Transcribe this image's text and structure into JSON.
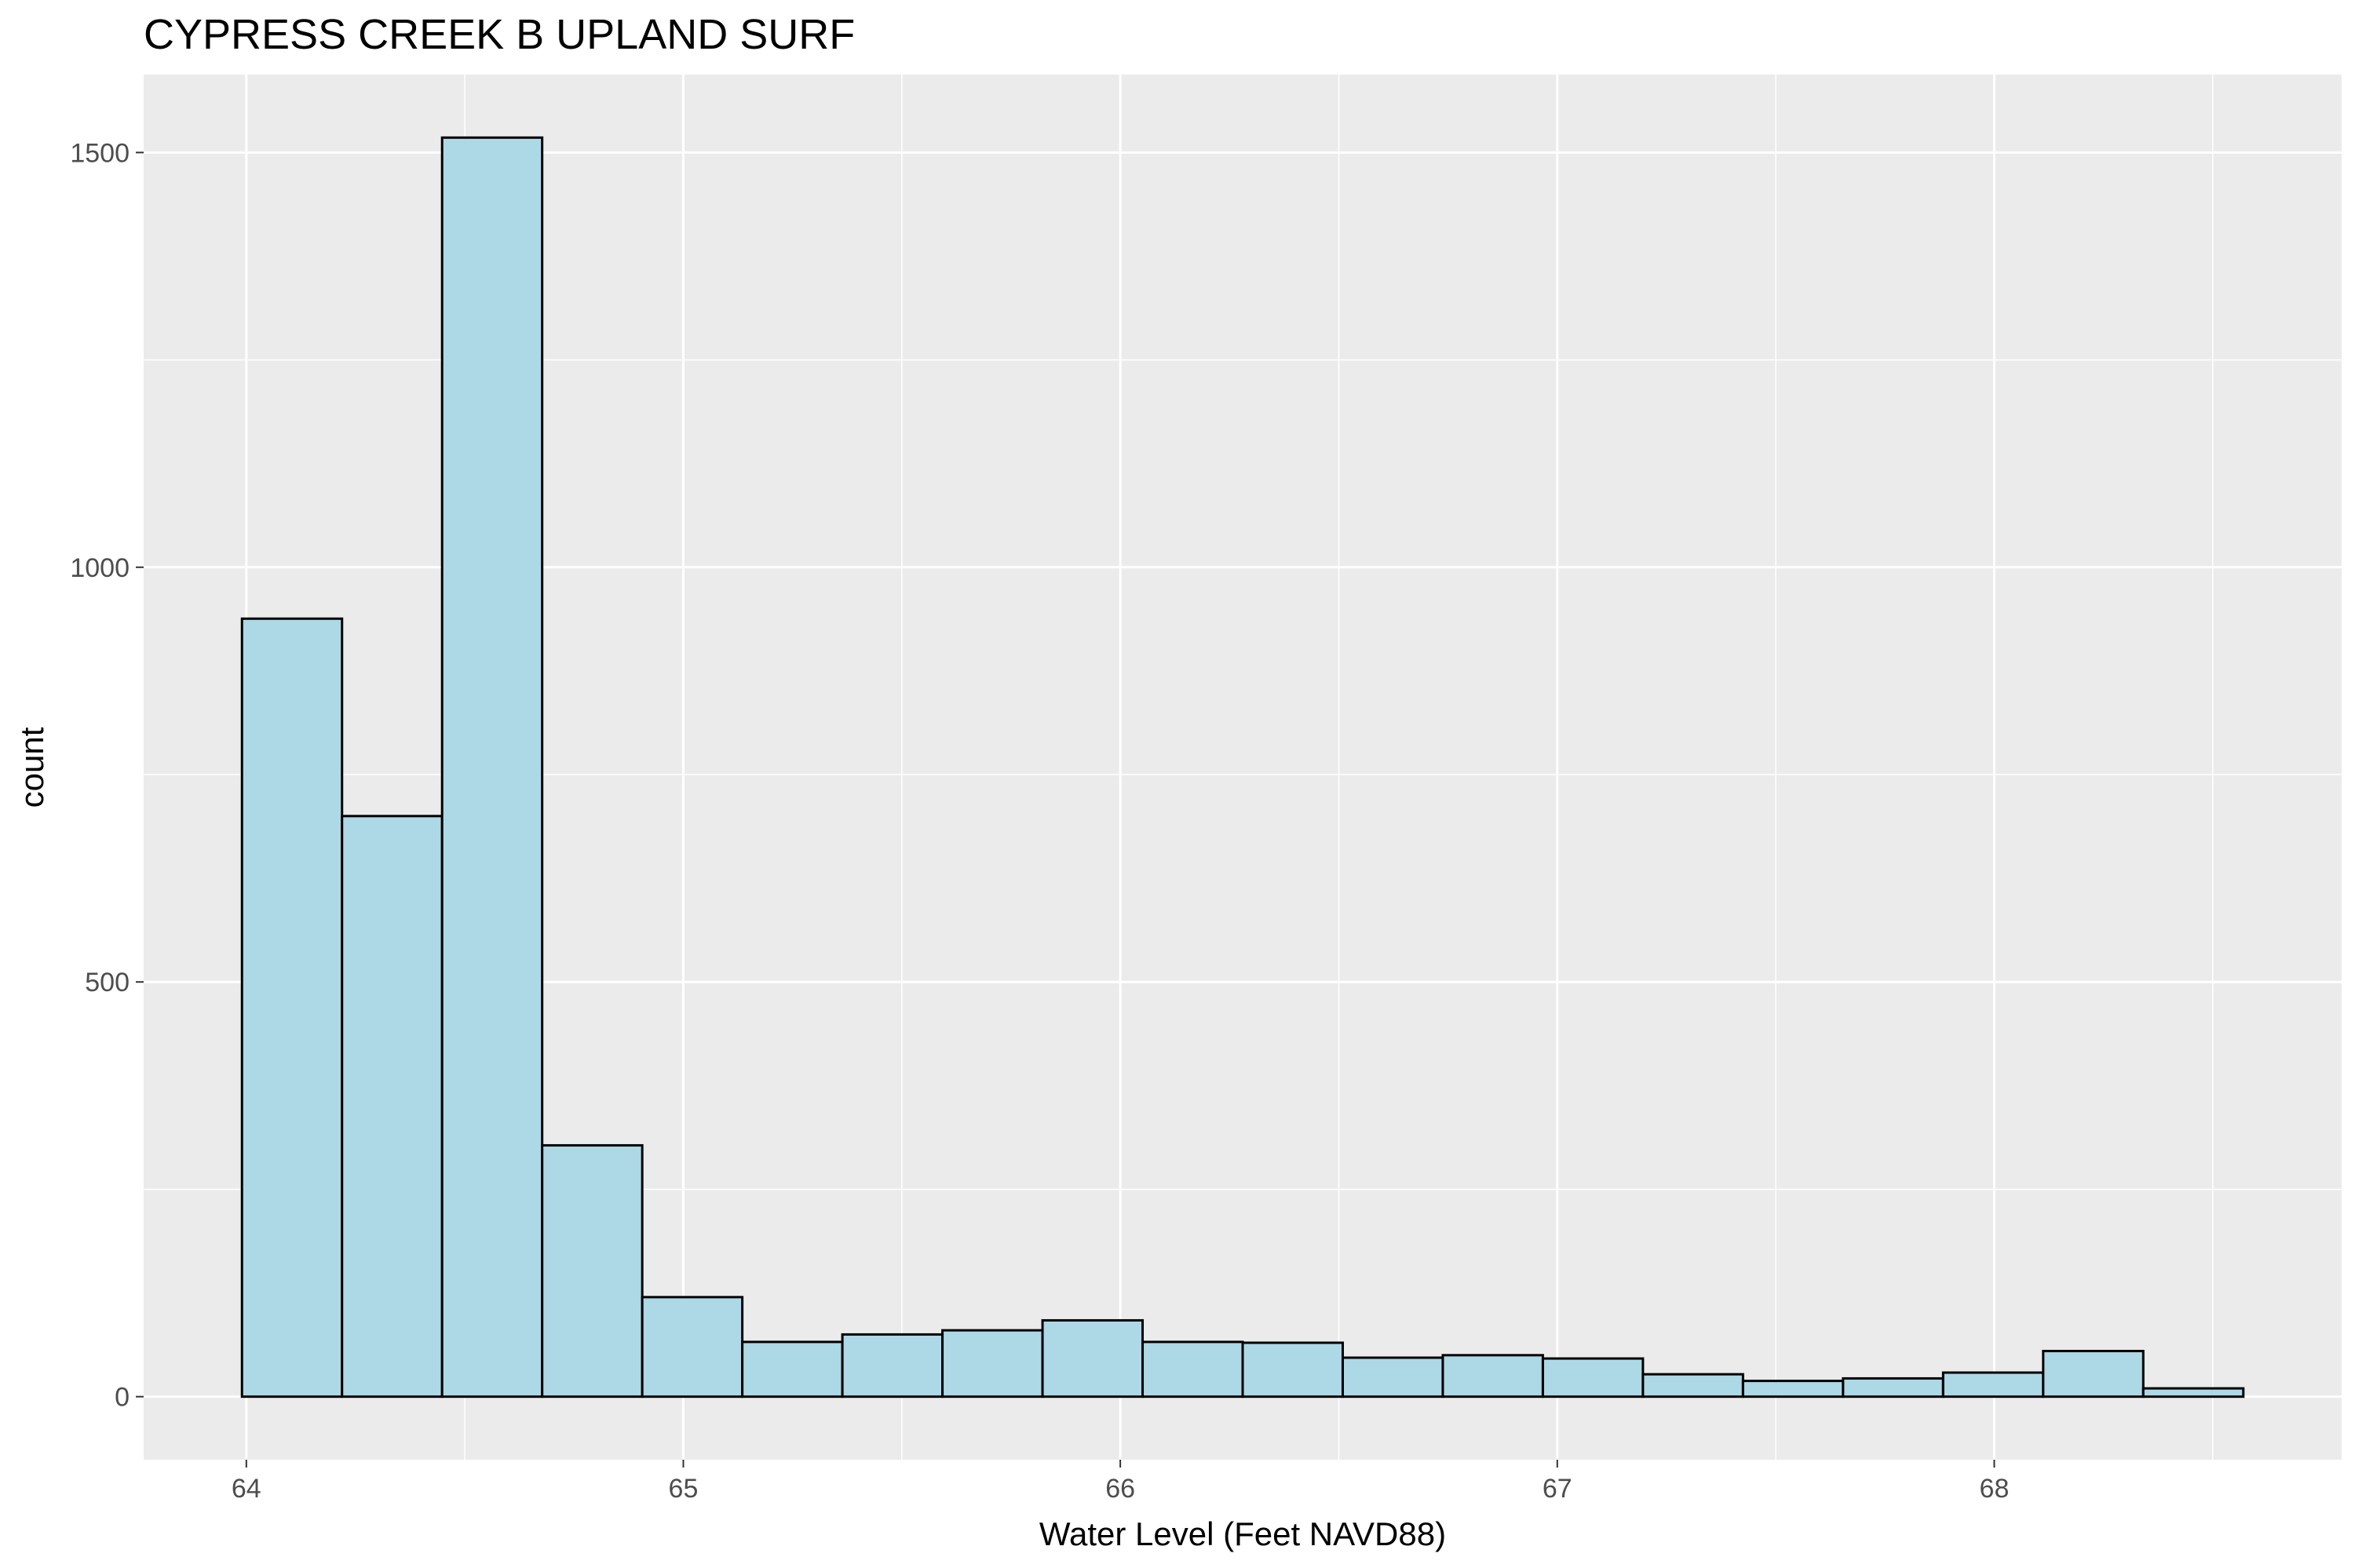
{
  "chart_data": {
    "type": "bar",
    "subtype": "histogram",
    "title": "CYPRESS CREEK B UPLAND SURF",
    "xlabel": "Water Level (Feet NAVD88)",
    "ylabel": "count",
    "bin_width": 0.229,
    "bins": [
      {
        "x_start": 63.99,
        "x_end": 64.219,
        "count": 938
      },
      {
        "x_start": 64.219,
        "x_end": 64.448,
        "count": 700
      },
      {
        "x_start": 64.448,
        "x_end": 64.677,
        "count": 1518
      },
      {
        "x_start": 64.677,
        "x_end": 64.906,
        "count": 303
      },
      {
        "x_start": 64.906,
        "x_end": 65.135,
        "count": 120
      },
      {
        "x_start": 65.135,
        "x_end": 65.364,
        "count": 66
      },
      {
        "x_start": 65.364,
        "x_end": 65.593,
        "count": 75
      },
      {
        "x_start": 65.593,
        "x_end": 65.822,
        "count": 80
      },
      {
        "x_start": 65.822,
        "x_end": 66.051,
        "count": 92
      },
      {
        "x_start": 66.051,
        "x_end": 66.28,
        "count": 66
      },
      {
        "x_start": 66.28,
        "x_end": 66.509,
        "count": 65
      },
      {
        "x_start": 66.509,
        "x_end": 66.738,
        "count": 47
      },
      {
        "x_start": 66.738,
        "x_end": 66.967,
        "count": 50
      },
      {
        "x_start": 66.967,
        "x_end": 67.196,
        "count": 46
      },
      {
        "x_start": 67.196,
        "x_end": 67.425,
        "count": 27
      },
      {
        "x_start": 67.425,
        "x_end": 67.654,
        "count": 19
      },
      {
        "x_start": 67.654,
        "x_end": 67.883,
        "count": 22
      },
      {
        "x_start": 67.883,
        "x_end": 68.112,
        "count": 29
      },
      {
        "x_start": 68.112,
        "x_end": 68.341,
        "count": 55
      },
      {
        "x_start": 68.341,
        "x_end": 68.57,
        "count": 10
      }
    ],
    "xlim": [
      63.765,
      68.795
    ],
    "ylim": [
      -76,
      1594
    ],
    "x_ticks": [
      64,
      65,
      66,
      67,
      68
    ],
    "x_tick_labels": [
      "64",
      "65",
      "66",
      "67",
      "68"
    ],
    "x_minor_ticks": [
      64.5,
      65.5,
      66.5,
      67.5,
      68.5
    ],
    "y_ticks": [
      0,
      500,
      1000,
      1500
    ],
    "y_tick_labels": [
      "0",
      "500",
      "1000",
      "1500"
    ],
    "y_minor_ticks": [
      250,
      750,
      1250
    ],
    "grid": true,
    "legend": "none",
    "colors": {
      "bar_fill": "#add8e6",
      "bar_outline": "#000000",
      "panel_background": "#ebebeb",
      "gridline": "#ffffff",
      "tick_text": "#4d4d4d",
      "axis_ticks": "#333333"
    }
  }
}
